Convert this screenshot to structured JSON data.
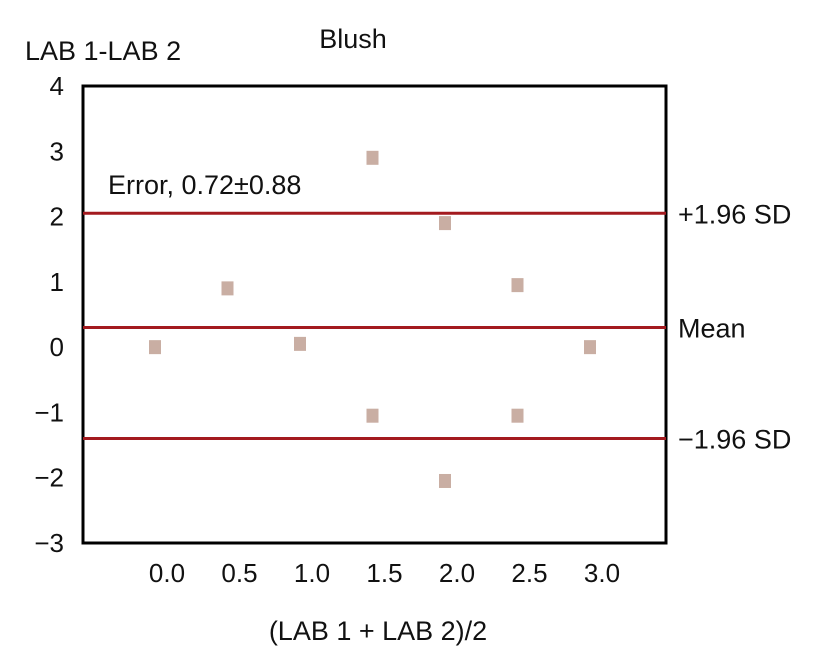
{
  "chart_data": {
    "type": "scatter",
    "title": "Blush",
    "ylabel": "LAB 1-LAB 2",
    "xlabel": "(LAB 1 + LAB 2)/2",
    "x_ticks": [
      "0.0",
      "0.5",
      "1.0",
      "1.5",
      "2.0",
      "2.5",
      "3.0"
    ],
    "y_ticks": [
      "4",
      "3",
      "2",
      "1",
      "0",
      "−1",
      "−2",
      "−3"
    ],
    "ylim": [
      -3,
      4
    ],
    "grid": false,
    "annotation": "Error, 0.72±0.88",
    "reference_lines": [
      {
        "label": "+1.96 SD",
        "y": 2.05
      },
      {
        "label": "Mean",
        "y": 0.3
      },
      {
        "label": "−1.96 SD",
        "y": -1.4
      }
    ],
    "points": [
      {
        "x": 0.0,
        "y": 0.0
      },
      {
        "x": 0.5,
        "y": 0.9
      },
      {
        "x": 1.0,
        "y": 0.05
      },
      {
        "x": 1.5,
        "y": 2.9
      },
      {
        "x": 1.5,
        "y": -1.05
      },
      {
        "x": 2.0,
        "y": 1.9
      },
      {
        "x": 2.0,
        "y": -2.05
      },
      {
        "x": 2.5,
        "y": 0.95
      },
      {
        "x": 2.5,
        "y": -1.05
      },
      {
        "x": 3.0,
        "y": 0.0
      }
    ],
    "colors": {
      "points": "#c9aea3",
      "lines": "#a31a1f",
      "axes": "#000000"
    }
  }
}
